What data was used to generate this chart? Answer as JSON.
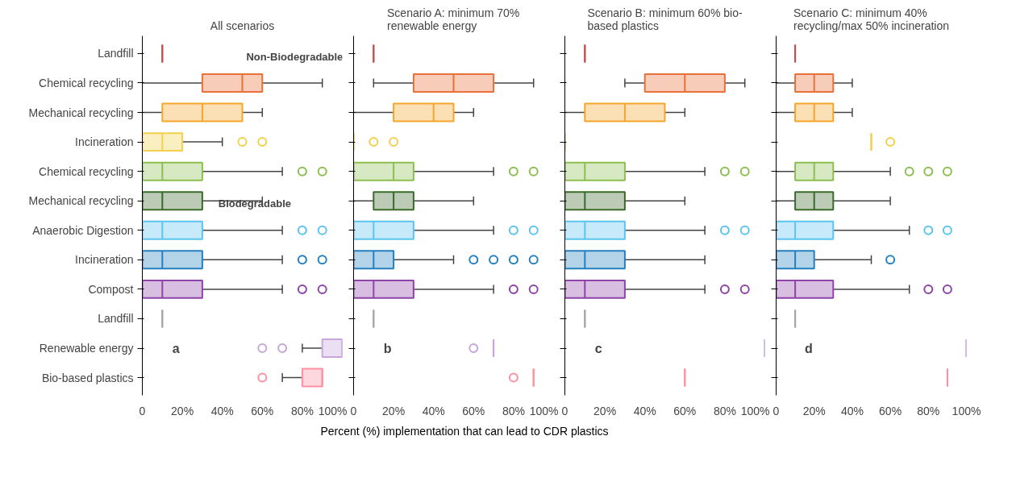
{
  "chart_data": [
    {
      "type": "box",
      "orientation": "horizontal",
      "title": "All scenarios",
      "categories": [
        "Landfill",
        "Chemical recycling",
        "Mechanical recycling",
        "Incineration",
        "Chemical recycling",
        "Mechanical recycling",
        "Anaerobic Digestion",
        "Incineration",
        "Compost",
        "Landfill",
        "Renewable energy",
        "Bio-based plastics"
      ],
      "colors": [
        "#c0504d",
        "#e8703a",
        "#f5a52a",
        "#f2d04e",
        "#8cbf4f",
        "#3b6b2a",
        "#5cc4f0",
        "#2480c0",
        "#8e44a8",
        "#a6a6a6",
        "#c7a6dc",
        "#ff8fa3"
      ],
      "boxes": [
        {
          "low": 10,
          "q1": 10,
          "median": 10,
          "q3": 10,
          "high": 10
        },
        {
          "low": 0,
          "q1": 30,
          "median": 50,
          "q3": 60,
          "high": 90
        },
        {
          "low": 0,
          "q1": 10,
          "median": 30,
          "q3": 50,
          "high": 60
        },
        {
          "low": 0,
          "q1": 0,
          "median": 10,
          "q3": 20,
          "high": 40,
          "outliers": [
            50,
            60
          ]
        },
        {
          "low": 0,
          "q1": 0,
          "median": 10,
          "q3": 30,
          "high": 70,
          "outliers": [
            80,
            90
          ]
        },
        {
          "low": 0,
          "q1": 0,
          "median": 10,
          "q3": 30,
          "high": 60
        },
        {
          "low": 0,
          "q1": 0,
          "median": 10,
          "q3": 30,
          "high": 70,
          "outliers": [
            80,
            90
          ]
        },
        {
          "low": 0,
          "q1": 0,
          "median": 10,
          "q3": 30,
          "high": 70,
          "outliers": [
            80,
            90
          ]
        },
        {
          "low": 0,
          "q1": 0,
          "median": 10,
          "q3": 30,
          "high": 70,
          "outliers": [
            80,
            90
          ]
        },
        {
          "low": 10,
          "q1": 10,
          "median": 10,
          "q3": 10,
          "high": 10
        },
        {
          "low": 80,
          "q1": 90,
          "median": 100,
          "q3": 100,
          "high": 100,
          "outliers": [
            60,
            70
          ]
        },
        {
          "low": 70,
          "q1": 80,
          "median": 90,
          "q3": 90,
          "high": 90,
          "outliers": [
            60
          ]
        }
      ],
      "xlim": [
        0,
        100
      ],
      "xticks": [
        0,
        {
          "value": 20,
          "label": "20%"
        },
        {
          "value": 40,
          "label": "40%"
        },
        {
          "value": 60,
          "label": "60%"
        },
        {
          "value": 80,
          "label": "80%"
        },
        {
          "value": 100,
          "label": "100%"
        }
      ],
      "annotations": [
        "Non-Biodegradable",
        "Biodegradable",
        "a"
      ],
      "grid": false
    },
    {
      "type": "box",
      "orientation": "horizontal",
      "title": "Scenario A: minimum 70% renewable energy",
      "xlabel": "Percent (%) implementation that can lead to CDR plastics",
      "categories": [
        "Landfill",
        "Chemical recycling",
        "Mechanical recycling",
        "Incineration",
        "Chemical recycling",
        "Mechanical recycling",
        "Anaerobic Digestion",
        "Incineration",
        "Compost",
        "Landfill",
        "Renewable energy",
        "Bio-based plastics"
      ],
      "colors": [
        "#c0504d",
        "#e8703a",
        "#f5a52a",
        "#f2d04e",
        "#8cbf4f",
        "#3b6b2a",
        "#5cc4f0",
        "#2480c0",
        "#8e44a8",
        "#a6a6a6",
        "#c7a6dc",
        "#ff8fa3"
      ],
      "boxes": [
        {
          "low": 10,
          "q1": 10,
          "median": 10,
          "q3": 10,
          "high": 10
        },
        {
          "low": 10,
          "q1": 30,
          "median": 50,
          "q3": 70,
          "high": 90
        },
        {
          "low": 0,
          "q1": 20,
          "median": 40,
          "q3": 50,
          "high": 60
        },
        {
          "low": 0,
          "q1": 0,
          "median": 0,
          "q3": 0,
          "high": 0,
          "outliers": [
            10,
            20
          ]
        },
        {
          "low": 0,
          "q1": 0,
          "median": 20,
          "q3": 30,
          "high": 70,
          "outliers": [
            80,
            90
          ]
        },
        {
          "low": 0,
          "q1": 10,
          "median": 20,
          "q3": 30,
          "high": 60
        },
        {
          "low": 0,
          "q1": 0,
          "median": 10,
          "q3": 30,
          "high": 70,
          "outliers": [
            80,
            90
          ]
        },
        {
          "low": 0,
          "q1": 0,
          "median": 10,
          "q3": 20,
          "high": 50,
          "outliers": [
            60,
            70,
            80,
            90
          ]
        },
        {
          "low": 0,
          "q1": 0,
          "median": 10,
          "q3": 30,
          "high": 70,
          "outliers": [
            80,
            90
          ]
        },
        {
          "low": 10,
          "q1": 10,
          "median": 10,
          "q3": 10,
          "high": 10
        },
        {
          "low": 70,
          "q1": 70,
          "median": 70,
          "q3": 70,
          "high": 70,
          "outliers": [
            60
          ]
        },
        {
          "low": 90,
          "q1": 90,
          "median": 90,
          "q3": 90,
          "high": 90,
          "outliers": [
            80
          ]
        }
      ],
      "xlim": [
        0,
        100
      ],
      "xticks": [
        0,
        {
          "value": 20,
          "label": "20%"
        },
        {
          "value": 40,
          "label": "40%"
        },
        {
          "value": 60,
          "label": "60%"
        },
        {
          "value": 80,
          "label": "80%"
        },
        {
          "value": 100,
          "label": "100%"
        }
      ],
      "annotations": [
        "b"
      ],
      "tick_labels": "x",
      "grid": false
    },
    {
      "type": "box",
      "orientation": "horizontal",
      "title": "Scenario B: minimum 60% bio-based plastics",
      "categories": [
        "Landfill",
        "Chemical recycling",
        "Mechanical recycling",
        "Incineration",
        "Chemical recycling",
        "Mechanical recycling",
        "Anaerobic Digestion",
        "Incineration",
        "Compost",
        "Landfill",
        "Renewable energy",
        "Bio-based plastics"
      ],
      "colors": [
        "#c0504d",
        "#e8703a",
        "#f5a52a",
        "#f2d04e",
        "#8cbf4f",
        "#3b6b2a",
        "#5cc4f0",
        "#2480c0",
        "#8e44a8",
        "#a6a6a6",
        "#c7a6dc",
        "#ff8fa3"
      ],
      "boxes": [
        {
          "low": 10,
          "q1": 10,
          "median": 10,
          "q3": 10,
          "high": 10
        },
        {
          "low": 30,
          "q1": 40,
          "median": 60,
          "q3": 80,
          "high": 90
        },
        {
          "low": 0,
          "q1": 10,
          "median": 30,
          "q3": 50,
          "high": 60
        },
        {
          "low": 0,
          "q1": 0,
          "median": 0,
          "q3": 0,
          "high": 0
        },
        {
          "low": 0,
          "q1": 0,
          "median": 10,
          "q3": 30,
          "high": 70,
          "outliers": [
            80,
            90
          ]
        },
        {
          "low": 0,
          "q1": 0,
          "median": 10,
          "q3": 30,
          "high": 60
        },
        {
          "low": 0,
          "q1": 0,
          "median": 10,
          "q3": 30,
          "high": 70,
          "outliers": [
            80,
            90
          ]
        },
        {
          "low": 0,
          "q1": 0,
          "median": 10,
          "q3": 30,
          "high": 70
        },
        {
          "low": 0,
          "q1": 0,
          "median": 10,
          "q3": 30,
          "high": 70,
          "outliers": [
            80,
            90
          ]
        },
        {
          "low": 10,
          "q1": 10,
          "median": 10,
          "q3": 10,
          "high": 10
        },
        {
          "low": 100,
          "q1": 100,
          "median": 100,
          "q3": 100,
          "high": 100
        },
        {
          "low": 60,
          "q1": 60,
          "median": 60,
          "q3": 60,
          "high": 60
        }
      ],
      "xlim": [
        0,
        100
      ],
      "xticks": [
        0,
        {
          "value": 20,
          "label": "20%"
        },
        {
          "value": 40,
          "label": "40%"
        },
        {
          "value": 60,
          "label": "60%"
        },
        {
          "value": 80,
          "label": "80%"
        },
        {
          "value": 100,
          "label": "100%"
        }
      ],
      "annotations": [
        "c"
      ],
      "tick_labels": "x",
      "grid": false
    },
    {
      "type": "box",
      "orientation": "horizontal",
      "title": "Scenario C: minimum 40% recycling/max 50% incineration",
      "categories": [
        "Landfill",
        "Chemical recycling",
        "Mechanical recycling",
        "Incineration",
        "Chemical recycling",
        "Mechanical recycling",
        "Anaerobic Digestion",
        "Incineration",
        "Compost",
        "Landfill",
        "Renewable energy",
        "Bio-based plastics"
      ],
      "colors": [
        "#c0504d",
        "#e8703a",
        "#f5a52a",
        "#f2d04e",
        "#8cbf4f",
        "#3b6b2a",
        "#5cc4f0",
        "#2480c0",
        "#8e44a8",
        "#a6a6a6",
        "#c7a6dc",
        "#ff8fa3"
      ],
      "boxes": [
        {
          "low": 10,
          "q1": 10,
          "median": 10,
          "q3": 10,
          "high": 10
        },
        {
          "low": 0,
          "q1": 10,
          "median": 20,
          "q3": 30,
          "high": 40
        },
        {
          "low": 0,
          "q1": 10,
          "median": 20,
          "q3": 30,
          "high": 40
        },
        {
          "low": 50,
          "q1": 50,
          "median": 50,
          "q3": 50,
          "high": 50,
          "outliers": [
            60
          ]
        },
        {
          "low": 0,
          "q1": 10,
          "median": 20,
          "q3": 30,
          "high": 60,
          "outliers": [
            70,
            80,
            90
          ]
        },
        {
          "low": 0,
          "q1": 10,
          "median": 20,
          "q3": 30,
          "high": 60
        },
        {
          "low": 0,
          "q1": 0,
          "median": 10,
          "q3": 30,
          "high": 70,
          "outliers": [
            80,
            90
          ]
        },
        {
          "low": 0,
          "q1": 0,
          "median": 10,
          "q3": 20,
          "high": 50,
          "outliers": [
            60
          ]
        },
        {
          "low": 0,
          "q1": 0,
          "median": 10,
          "q3": 30,
          "high": 70,
          "outliers": [
            80,
            90
          ]
        },
        {
          "low": 10,
          "q1": 10,
          "median": 10,
          "q3": 10,
          "high": 10
        },
        {
          "low": 100,
          "q1": 100,
          "median": 100,
          "q3": 100,
          "high": 100
        },
        {
          "low": 90,
          "q1": 90,
          "median": 90,
          "q3": 90,
          "high": 90
        }
      ],
      "xlim": [
        0,
        100
      ],
      "xticks": [
        0,
        {
          "value": 20,
          "label": "20%"
        },
        {
          "value": 40,
          "label": "40%"
        },
        {
          "value": 60,
          "label": "60%"
        },
        {
          "value": 80,
          "label": "80%"
        },
        {
          "value": 100,
          "label": "100%"
        }
      ],
      "annotations": [
        "d"
      ],
      "tick_labels": "x",
      "grid": false
    }
  ]
}
